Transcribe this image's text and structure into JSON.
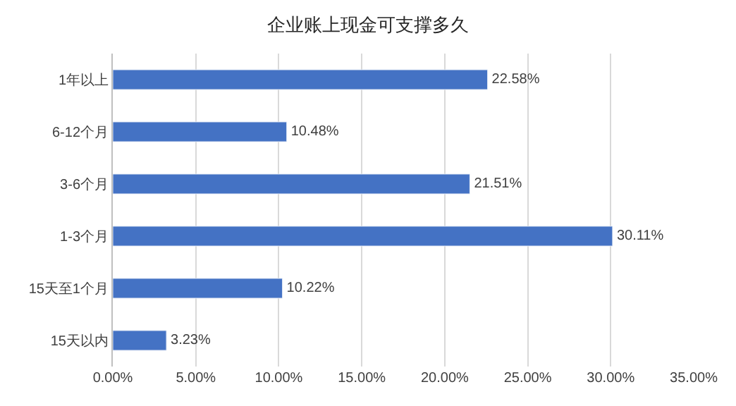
{
  "chart_data": {
    "type": "bar",
    "orientation": "horizontal",
    "title": "企业账上现金可支撑多久",
    "categories": [
      "1年以上",
      "6-12个月",
      "3-6个月",
      "1-3个月",
      "15天至1个月",
      "15天以内"
    ],
    "values": [
      22.58,
      10.48,
      21.51,
      30.11,
      10.22,
      3.23
    ],
    "value_labels": [
      "22.58%",
      "10.48%",
      "21.51%",
      "30.11%",
      "10.22%",
      "3.23%"
    ],
    "color": "#4472c4",
    "xlim": [
      0,
      35
    ],
    "xticks": [
      {
        "value": 0,
        "label": "0.00%"
      },
      {
        "value": 5,
        "label": "5.00%"
      },
      {
        "value": 10,
        "label": "10.00%"
      },
      {
        "value": 15,
        "label": "15.00%"
      },
      {
        "value": 20,
        "label": "20.00%"
      },
      {
        "value": 25,
        "label": "25.00%"
      },
      {
        "value": 30,
        "label": "30.00%"
      },
      {
        "value": 35,
        "label": "35.00%"
      }
    ],
    "grid": "x"
  }
}
